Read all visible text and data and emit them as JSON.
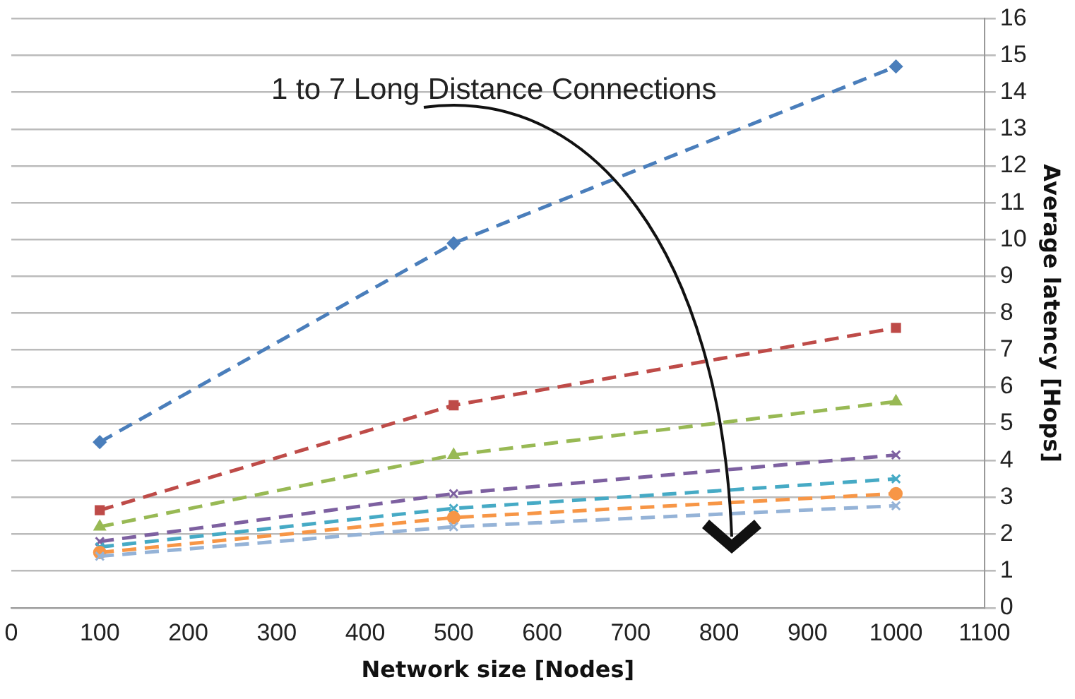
{
  "chart_data": {
    "type": "line",
    "xlabel": "Network size [Nodes]",
    "ylabel": "Average latency [Hops]",
    "x": [
      100,
      500,
      1000
    ],
    "xlim": [
      0,
      1100
    ],
    "xticks": [
      0,
      100,
      200,
      300,
      400,
      500,
      600,
      700,
      800,
      900,
      1000,
      1100
    ],
    "ylim": [
      0,
      16
    ],
    "yticks": [
      0,
      1,
      2,
      3,
      4,
      5,
      6,
      7,
      8,
      9,
      10,
      11,
      12,
      13,
      14,
      15,
      16
    ],
    "grid": "y",
    "legend": false,
    "line_style": "dashed",
    "annotations": [
      "1 to 7 Long Distance Connections"
    ],
    "series": [
      {
        "color": "#4a7ebb",
        "marker": "diamond",
        "values": [
          4.5,
          9.9,
          14.7
        ]
      },
      {
        "color": "#be4b48",
        "marker": "square",
        "values": [
          2.65,
          5.5,
          7.6
        ]
      },
      {
        "color": "#98b954",
        "marker": "triangle",
        "values": [
          2.2,
          4.15,
          5.6
        ]
      },
      {
        "color": "#7d60a0",
        "marker": "cross",
        "values": [
          1.8,
          3.1,
          4.15
        ]
      },
      {
        "color": "#46aac5",
        "marker": "cross",
        "values": [
          1.65,
          2.7,
          3.5
        ]
      },
      {
        "color": "#f79646",
        "marker": "circle",
        "values": [
          1.5,
          2.45,
          3.1
        ]
      },
      {
        "color": "#95b3d7",
        "marker": "cross",
        "values": [
          1.4,
          2.2,
          2.77
        ]
      }
    ]
  }
}
